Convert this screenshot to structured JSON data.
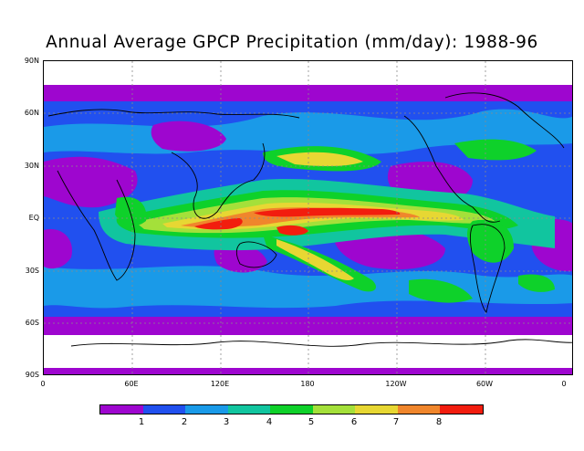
{
  "title": "Annual Average GPCP Precipitation (mm/day): 1988-96",
  "lat_ticks": [
    "90N",
    "60N",
    "30N",
    "EQ",
    "30S",
    "60S",
    "90S"
  ],
  "lon_ticks": [
    "0",
    "60E",
    "120E",
    "180",
    "120W",
    "60W",
    "0"
  ],
  "colorbar": {
    "colors": [
      "#9e06cf",
      "#2150ef",
      "#1a9ae8",
      "#11c59f",
      "#0ed12a",
      "#a4e03a",
      "#e7d733",
      "#f0862c",
      "#f21d0e"
    ],
    "labels": [
      "1",
      "2",
      "3",
      "4",
      "5",
      "6",
      "7",
      "8"
    ]
  }
}
